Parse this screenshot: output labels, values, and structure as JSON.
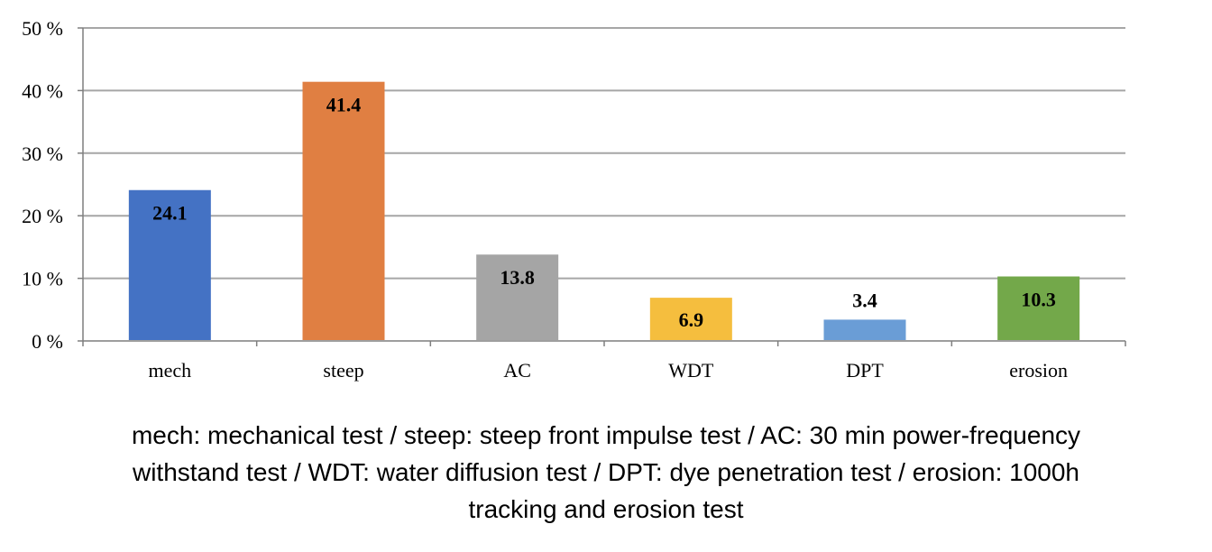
{
  "chart_data": {
    "type": "bar",
    "categories": [
      "mech",
      "steep",
      "AC",
      "WDT",
      "DPT",
      "erosion"
    ],
    "values": [
      24.1,
      41.4,
      13.8,
      6.9,
      3.4,
      10.3
    ],
    "data_labels": [
      "24.1",
      "41.4",
      "13.8",
      "6.9",
      "3.4",
      "10.3"
    ],
    "colors": [
      "#4472C4",
      "#E07F42",
      "#A5A5A5",
      "#F5BE3E",
      "#6A9DD6",
      "#73A84A"
    ],
    "y_ticks": [
      "0 %",
      "10 %",
      "20 %",
      "30 %",
      "40 %",
      "50 %"
    ],
    "ylim": [
      0,
      50
    ],
    "grid": true,
    "legend": "none"
  },
  "caption": {
    "line1": "mech: mechanical test / steep: steep front impulse test / AC: 30 min power-frequency",
    "line2": "withstand test / WDT: water diffusion test / DPT: dye penetration test / erosion: 1000h",
    "line3": "tracking and erosion test"
  }
}
